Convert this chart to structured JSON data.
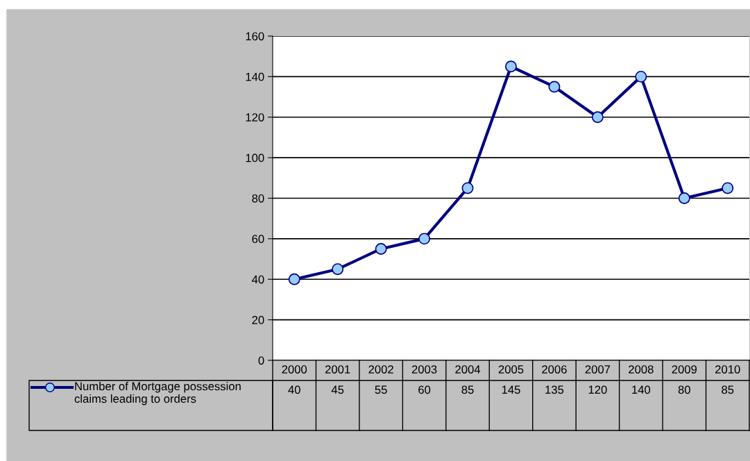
{
  "chart_data": {
    "type": "line",
    "categories": [
      "2000",
      "2001",
      "2002",
      "2003",
      "2004",
      "2005",
      "2006",
      "2007",
      "2008",
      "2009",
      "2010"
    ],
    "series": [
      {
        "name": "Number of Mortgage possession claims leading to orders",
        "color": "#000080",
        "values": [
          40,
          45,
          55,
          60,
          85,
          145,
          135,
          120,
          140,
          80,
          85
        ]
      }
    ],
    "ylim": [
      0,
      160
    ],
    "yticks": [
      0,
      20,
      40,
      60,
      80,
      100,
      120,
      140,
      160
    ],
    "grid": "y",
    "marker": "circle",
    "line_style": "solid",
    "data_labels": true,
    "legend": "bottom"
  }
}
